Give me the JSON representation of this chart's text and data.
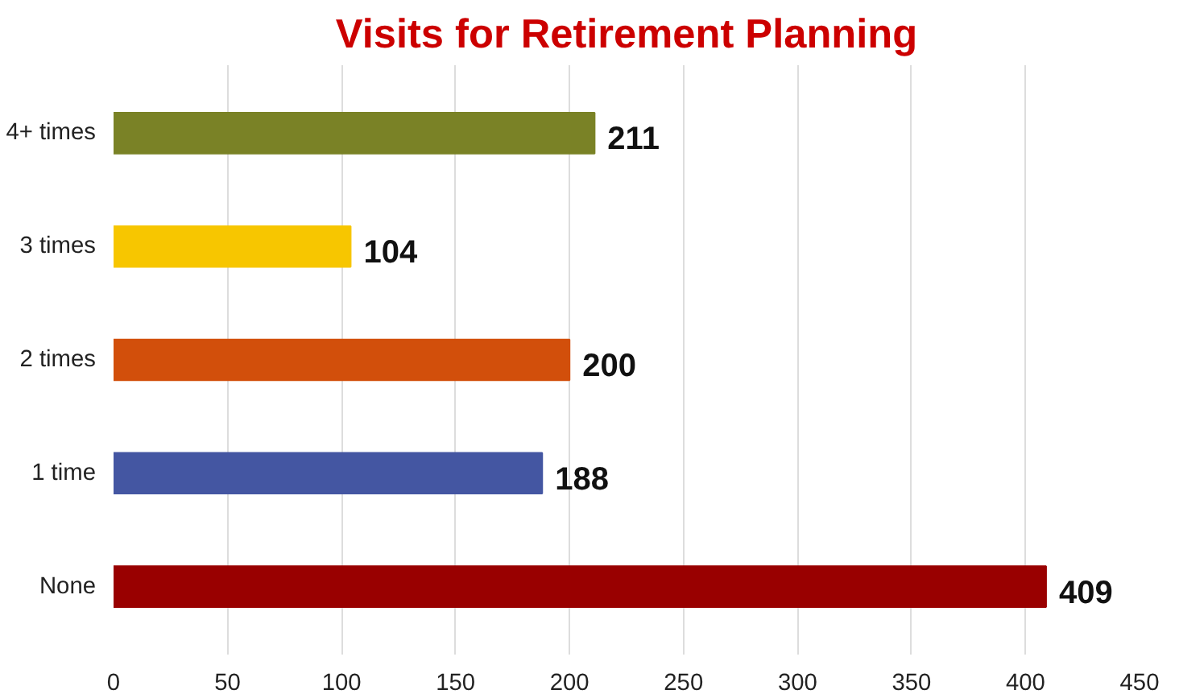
{
  "chart_data": {
    "type": "bar",
    "orientation": "horizontal",
    "title": "Visits for Retirement Planning",
    "categories": [
      "4+ times",
      "3 times",
      "2 times",
      "1 time",
      "None"
    ],
    "values": [
      211,
      104,
      200,
      188,
      409
    ],
    "colors": [
      "#7a8226",
      "#f7c600",
      "#d24f0b",
      "#4456a2",
      "#990000"
    ],
    "xlim": [
      0,
      450
    ],
    "xticks": [
      0,
      50,
      100,
      150,
      200,
      250,
      300,
      350,
      400,
      450
    ],
    "grid": "x",
    "data_labels": true
  }
}
